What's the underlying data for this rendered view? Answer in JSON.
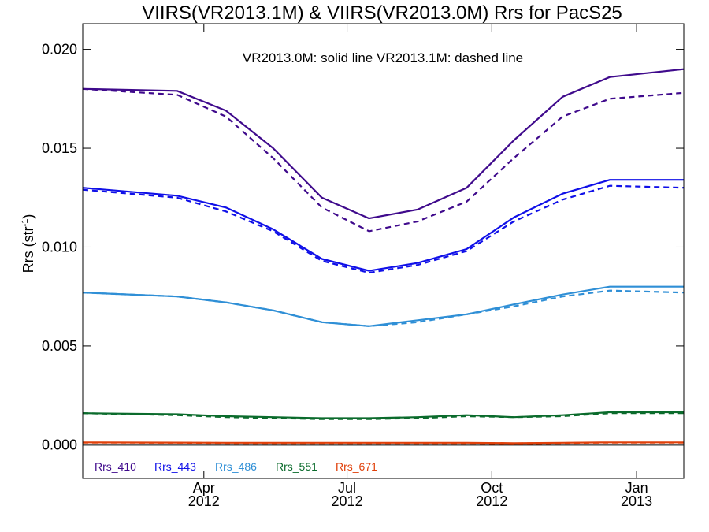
{
  "chart_data": {
    "type": "line",
    "title": "VIIRS(VR2013.1M) & VIIRS(VR2013.0M)  Rrs for PacS25",
    "ylabel": "Rrs (str",
    "ylabel_sup": "-1",
    "ylabel_close": ")",
    "annotation": "VR2013.0M: solid line   VR2013.1M: dashed line",
    "xlim": [
      "2012-01-15",
      "2013-01-31"
    ],
    "ylim": [
      -0.0017,
      0.0213
    ],
    "yticks": [
      0.0,
      0.005,
      0.01,
      0.015,
      0.02
    ],
    "ytick_labels": [
      "0.000",
      "0.005",
      "0.010",
      "0.015",
      "0.020"
    ],
    "xticks": [
      {
        "date": "2012-04-01",
        "month": "Apr",
        "year": "2012"
      },
      {
        "date": "2012-07-01",
        "month": "Jul",
        "year": "2012"
      },
      {
        "date": "2012-10-01",
        "month": "Oct",
        "year": "2012"
      },
      {
        "date": "2013-01-01",
        "month": "Jan",
        "year": "2013"
      }
    ],
    "x": [
      "2012-01-15",
      "2012-03-15",
      "2012-04-15",
      "2012-05-15",
      "2012-06-15",
      "2012-07-15",
      "2012-08-15",
      "2012-09-15",
      "2012-10-15",
      "2012-11-15",
      "2012-12-15",
      "2013-01-31"
    ],
    "zero_line": true,
    "series": [
      {
        "name": "Rrs_410",
        "color": "#3f0a8c",
        "solid": [
          0.018,
          0.0179,
          0.0169,
          0.015,
          0.0125,
          0.01145,
          0.0119,
          0.013,
          0.0154,
          0.0176,
          0.0186,
          0.019
        ],
        "dashed": [
          0.018,
          0.0177,
          0.0166,
          0.0145,
          0.012,
          0.0108,
          0.0113,
          0.0123,
          0.0145,
          0.0166,
          0.0175,
          0.0178
        ]
      },
      {
        "name": "Rrs_443",
        "color": "#1010e8",
        "solid": [
          0.013,
          0.0126,
          0.012,
          0.0109,
          0.0094,
          0.0088,
          0.0092,
          0.0099,
          0.0115,
          0.0127,
          0.0134,
          0.0134
        ],
        "dashed": [
          0.0129,
          0.0125,
          0.0118,
          0.0108,
          0.0093,
          0.0087,
          0.0091,
          0.0098,
          0.0113,
          0.0124,
          0.0131,
          0.013
        ]
      },
      {
        "name": "Rrs_486",
        "color": "#2f8fd6",
        "solid": [
          0.0077,
          0.0075,
          0.0072,
          0.0068,
          0.0062,
          0.006,
          0.0063,
          0.0066,
          0.0071,
          0.0076,
          0.008,
          0.008
        ],
        "dashed": [
          0.0077,
          0.0075,
          0.0072,
          0.0068,
          0.0062,
          0.006,
          0.0062,
          0.0066,
          0.007,
          0.0075,
          0.0078,
          0.0077
        ]
      },
      {
        "name": "Rrs_551",
        "color": "#0b6b2c",
        "solid": [
          0.0016,
          0.00155,
          0.00145,
          0.0014,
          0.00135,
          0.00135,
          0.0014,
          0.0015,
          0.0014,
          0.0015,
          0.00165,
          0.00165
        ],
        "dashed": [
          0.0016,
          0.0015,
          0.0014,
          0.00135,
          0.0013,
          0.0013,
          0.00135,
          0.00145,
          0.0014,
          0.00145,
          0.0016,
          0.0016
        ]
      },
      {
        "name": "Rrs_671",
        "color": "#e0400a",
        "solid": [
          0.00012,
          0.00011,
          0.0001,
          0.0001,
          0.0001,
          0.0001,
          0.0001,
          0.0001,
          8e-05,
          0.0001,
          0.00012,
          0.00012
        ],
        "dashed": [
          0.00011,
          0.0001,
          9e-05,
          9e-05,
          9e-05,
          9e-05,
          9e-05,
          9e-05,
          7e-05,
          9e-05,
          0.00011,
          0.00011
        ]
      }
    ]
  }
}
